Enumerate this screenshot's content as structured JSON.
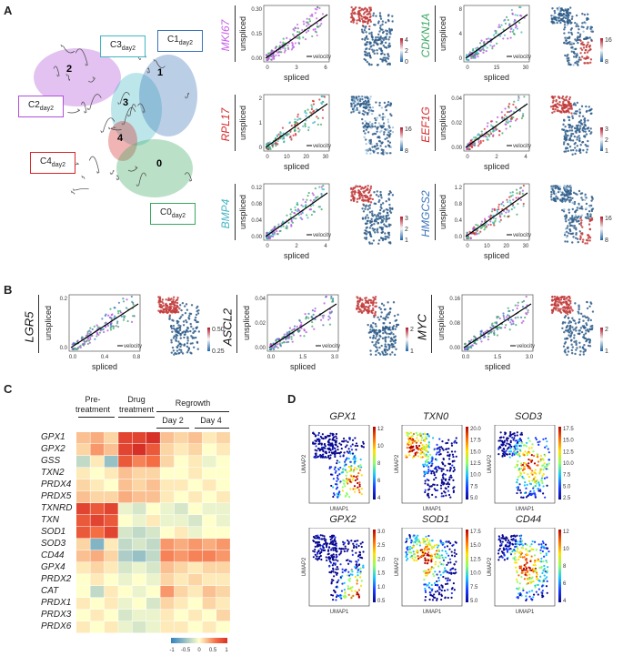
{
  "panels": {
    "a": "A",
    "b": "B",
    "c": "C",
    "d": "D"
  },
  "clusters": [
    {
      "label": "C1",
      "sub": "day2",
      "color": "#3a73b8",
      "num": "1"
    },
    {
      "label": "C3",
      "sub": "day2",
      "color": "#41b6c4",
      "num": "3"
    },
    {
      "label": "C2",
      "sub": "day2",
      "color": "#b04fd8",
      "num": "2"
    },
    {
      "label": "C4",
      "sub": "day2",
      "color": "#d62728",
      "num": "4"
    },
    {
      "label": "C0",
      "sub": "day2",
      "color": "#3aa860",
      "num": "0"
    }
  ],
  "axis": {
    "x": "spliced",
    "y": "unspliced",
    "legend": "velocity"
  },
  "panelA": [
    {
      "gene": "MKI67",
      "color": "#c65ae8",
      "xt": [
        "0",
        "3",
        "6"
      ],
      "yt": [
        "0.00",
        "0.15",
        "0.30"
      ],
      "cb": [
        "4",
        "2",
        "0"
      ],
      "pts": "purple"
    },
    {
      "gene": "CDKN1A",
      "color": "#3aa860",
      "xt": [
        "0",
        "15",
        "30"
      ],
      "yt": [
        "0",
        "4",
        "8"
      ],
      "cb": [
        "16",
        "8"
      ],
      "pts": "green"
    },
    {
      "gene": "RPL17",
      "color": "#d62728",
      "xt": [
        "0",
        "10",
        "20",
        "30"
      ],
      "yt": [
        "0",
        "1",
        "2"
      ],
      "cb": [
        "16",
        "8"
      ],
      "pts": "red"
    },
    {
      "gene": "EEF1G",
      "color": "#d62728",
      "xt": [
        "0",
        "2",
        "4"
      ],
      "yt": [
        "0.00",
        "0.02",
        "0.04"
      ],
      "cb": [
        "3",
        "2",
        "1"
      ],
      "pts": "mix"
    },
    {
      "gene": "BMP4",
      "color": "#41b6c4",
      "xt": [
        "0",
        "2",
        "4"
      ],
      "yt": [
        "0.00",
        "0.04",
        "0.08",
        "0.12"
      ],
      "cb": [
        "3",
        "2",
        "1"
      ],
      "pts": "green"
    },
    {
      "gene": "HMGCS2",
      "color": "#3a73b8",
      "xt": [
        "0",
        "10",
        "20",
        "30"
      ],
      "yt": [
        "0.0",
        "0.4",
        "0.8",
        "1.2"
      ],
      "cb": [
        "16",
        "8"
      ],
      "pts": "mix"
    }
  ],
  "panelB": [
    {
      "gene": "LGR5",
      "xt": [
        "0.0",
        "0.4",
        "0.8"
      ],
      "yt": [
        "0.0",
        "0.2"
      ],
      "cb": [
        "0.50",
        "0.25"
      ]
    },
    {
      "gene": "ASCL2",
      "xt": [
        "0.0",
        "1.5",
        "3.0"
      ],
      "yt": [
        "0.00",
        "0.02",
        "0.04"
      ],
      "cb": [
        "2",
        "1"
      ]
    },
    {
      "gene": "MYC",
      "xt": [
        "0.0",
        "1.5",
        "3.0"
      ],
      "yt": [
        "0.00",
        "0.08",
        "0.16"
      ],
      "cb": [
        "2",
        "1"
      ]
    }
  ],
  "heatmap": {
    "groups": {
      "pre": "Pre-\ntreatment",
      "drug": "Drug\ntreatment",
      "regrowth": "Regrowth",
      "day2": "Day 2",
      "day4": "Day 4"
    },
    "genes": [
      "GPX1",
      "GPX2",
      "GSS",
      "TXN2",
      "PRDX4",
      "PRDX5",
      "TXNRD",
      "TXN",
      "SOD1",
      "SOD3",
      "CD44",
      "GPX4",
      "PRDX2",
      "CAT",
      "PRDX1",
      "PRDX3",
      "PRDX6"
    ],
    "values": [
      [
        0.3,
        0.4,
        0.2,
        0.9,
        0.9,
        1.0,
        0.3,
        0.2,
        0.3,
        0.1,
        0.2
      ],
      [
        0.2,
        0.5,
        0.3,
        0.9,
        1.0,
        0.8,
        0.2,
        0.1,
        0.2,
        0.0,
        0.1
      ],
      [
        -0.3,
        0.1,
        -0.5,
        0.8,
        0.6,
        0.7,
        0.2,
        0.0,
        0.1,
        -0.1,
        0.0
      ],
      [
        0.1,
        0.0,
        0.1,
        0.3,
        0.2,
        0.2,
        0.0,
        0.0,
        0.1,
        0.0,
        0.0
      ],
      [
        0.2,
        0.1,
        0.0,
        0.3,
        0.2,
        0.3,
        0.1,
        0.1,
        0.0,
        0.1,
        0.0
      ],
      [
        0.3,
        0.2,
        0.2,
        0.4,
        0.3,
        0.3,
        0.1,
        0.0,
        0.1,
        0.0,
        0.1
      ],
      [
        0.9,
        0.8,
        0.9,
        -0.1,
        -0.2,
        0.0,
        -0.1,
        -0.2,
        0.0,
        -0.1,
        -0.1
      ],
      [
        0.8,
        0.9,
        0.8,
        0.0,
        -0.1,
        0.1,
        -0.1,
        -0.1,
        -0.2,
        0.0,
        -0.1
      ],
      [
        0.8,
        0.7,
        0.9,
        -0.2,
        -0.3,
        -0.2,
        0.0,
        0.1,
        -0.1,
        0.0,
        0.0
      ],
      [
        0.2,
        -0.6,
        0.1,
        -0.3,
        -0.2,
        -0.3,
        0.5,
        0.4,
        0.5,
        0.4,
        0.5
      ],
      [
        0.3,
        0.4,
        0.2,
        -0.4,
        -0.5,
        -0.3,
        0.6,
        0.5,
        0.6,
        0.6,
        0.5
      ],
      [
        0.1,
        0.2,
        0.1,
        -0.2,
        -0.1,
        -0.2,
        0.3,
        0.2,
        0.1,
        0.2,
        0.2
      ],
      [
        0.0,
        0.1,
        0.0,
        -0.1,
        0.0,
        -0.1,
        0.2,
        0.1,
        0.2,
        0.1,
        0.1
      ],
      [
        0.0,
        -0.3,
        0.1,
        0.0,
        -0.1,
        0.0,
        0.5,
        0.2,
        0.1,
        0.3,
        0.2
      ],
      [
        0.1,
        0.0,
        0.1,
        -0.1,
        0.0,
        -0.2,
        0.2,
        0.1,
        0.0,
        0.2,
        0.1
      ],
      [
        0.0,
        0.1,
        0.0,
        -0.2,
        -0.1,
        -0.1,
        0.1,
        0.0,
        0.1,
        0.0,
        0.2
      ],
      [
        0.1,
        0.0,
        0.1,
        -0.1,
        -0.2,
        -0.1,
        0.1,
        0.1,
        0.0,
        0.1,
        0.0
      ]
    ],
    "scale": [
      "-1",
      "-0.5",
      "0",
      "0.5",
      "1"
    ]
  },
  "panelD": {
    "x": "UMAP1",
    "y": "UMAP2",
    "plots": [
      {
        "gene": "GPX1",
        "ticks": [
          "12",
          "10",
          "8",
          "6",
          "4"
        ]
      },
      {
        "gene": "TXN0",
        "ticks": [
          "20.0",
          "17.5",
          "15.0",
          "12.5",
          "10.0",
          "7.5",
          "5.0"
        ]
      },
      {
        "gene": "SOD3",
        "ticks": [
          "17.5",
          "15.0",
          "12.5",
          "10.0",
          "7.5",
          "5.0",
          "2.5"
        ]
      },
      {
        "gene": "GPX2",
        "ticks": [
          "3.0",
          "2.5",
          "2.0",
          "1.5",
          "1.0",
          "0.5"
        ]
      },
      {
        "gene": "SOD1",
        "ticks": [
          "17.5",
          "15.0",
          "12.5",
          "10.0",
          "7.5",
          "5.0"
        ]
      },
      {
        "gene": "CD44",
        "ticks": [
          "12",
          "10",
          "8",
          "6",
          "4"
        ]
      }
    ]
  }
}
